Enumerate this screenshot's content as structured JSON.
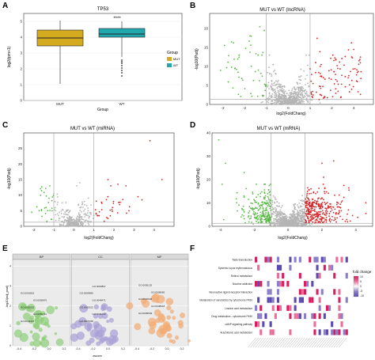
{
  "chart_data": [
    {
      "panel": "A",
      "type": "box",
      "title": "TP53",
      "xlabel": "Group",
      "ylabel": "log2(tpm+1)",
      "categories": [
        "MUT",
        "WT"
      ],
      "ylim": [
        0,
        5.5
      ],
      "ytick_labels": [
        "0",
        "1",
        "2",
        "3",
        "4",
        "5"
      ],
      "annotation": "****",
      "boxes": [
        {
          "name": "MUT",
          "color": "#d4ab1f",
          "whisker_low": 1.05,
          "q1": 3.45,
          "median": 3.95,
          "q3": 4.45,
          "whisker_high": 5.05,
          "outliers": []
        },
        {
          "name": "WT",
          "color": "#20a8ad",
          "whisker_low": 2.75,
          "q1": 4.0,
          "median": 4.2,
          "q3": 4.55,
          "whisker_high": 5.0,
          "outliers": [
            2.55,
            2.45,
            2.35,
            2.2,
            2.05,
            1.9,
            1.75,
            1.55
          ]
        }
      ],
      "legend": {
        "title": "Group",
        "entries": [
          "MUT",
          "WT"
        ],
        "position": "right"
      }
    },
    {
      "panel": "B",
      "type": "scatter",
      "title": "MUT vs WT (lncRNA)",
      "xlabel": "log2(FoldChang)",
      "ylabel": "-log10(Padj)",
      "xlim": [
        -3.6,
        3.9
      ],
      "ylim": [
        0,
        24
      ],
      "xticks": [
        -3,
        -2,
        -1,
        0,
        1,
        2,
        3
      ],
      "yticks": [
        0,
        5,
        10,
        15,
        20
      ],
      "vlines": [
        -1,
        1
      ],
      "hline": 1.3,
      "groups": {
        "down": "#59b845",
        "ns": "#b5b5b5",
        "up": "#d62728"
      }
    },
    {
      "panel": "C",
      "type": "scatter",
      "title": "MUT vs WT (miRNA)",
      "xlabel": "log2(FoldChang)",
      "ylabel": "-log10(Padj)",
      "xlim": [
        -2.5,
        5.0
      ],
      "ylim": [
        0,
        30
      ],
      "xticks": [
        -2,
        -1,
        0,
        1,
        2,
        3,
        4
      ],
      "yticks": [
        0,
        5,
        10,
        15,
        20,
        25
      ],
      "vlines": [
        -1,
        1
      ],
      "hline": 1.3,
      "groups": {
        "down": "#59b845",
        "ns": "#b5b5b5",
        "up": "#d62728"
      }
    },
    {
      "panel": "D",
      "type": "scatter",
      "title": "MUT vs WT (mRNA)",
      "xlabel": "log2(FoldChang)",
      "ylabel": "-log10(Padj)",
      "xlim": [
        -4.5,
        5.0
      ],
      "ylim": [
        0,
        40
      ],
      "xticks": [
        -4,
        -2,
        0,
        2,
        4
      ],
      "yticks": [
        0,
        10,
        20,
        30,
        40
      ],
      "vlines": [
        -1,
        1
      ],
      "hline": 1.3,
      "groups": {
        "down": "#59b845",
        "ns": "#b5b5b5",
        "up": "#d62728"
      }
    },
    {
      "panel": "E",
      "type": "bubble",
      "ylabel": "-log10(adj_pval)",
      "xlabel": "zscore",
      "facets": [
        "BP",
        "CC",
        "MF"
      ],
      "facet_colors": [
        "#8fcf7a",
        "#a9a0d6",
        "#f2ab72"
      ],
      "xticks": [
        "-0.4",
        "-0.2",
        "0.0",
        "0.2"
      ],
      "yticks": [
        "0",
        "1",
        "2",
        "3",
        "4"
      ],
      "point_labels": [
        "GO:0043367",
        "GO:0050711",
        "GO:0010332",
        "GO:0050870",
        "GO:0001819",
        "GO:0005788",
        "GO:0031012",
        "GO:0062023",
        "GO:0048471",
        "GO:0009986",
        "GO:0009897",
        "GO:0005539",
        "GO:0048018",
        "GO:0030546",
        "GO:0008083",
        "GO:0005125"
      ]
    },
    {
      "panel": "F",
      "type": "heatmap",
      "legend_title": "fold change",
      "legend_ticks": [
        "10",
        "5",
        "0",
        "-5",
        "-10"
      ],
      "colorscale": [
        "#d61f5e",
        "#e86f9a",
        "#ffffff",
        "#8c7fc9",
        "#5b4bb0"
      ],
      "rows": [
        "Taste transduction",
        "Systemic lupus erythematosus",
        "Retinol metabolism",
        "Nicotine addiction",
        "Neuroactive ligand-receptor interaction",
        "Metabolism of xenobiotics by cytochrome P450",
        "Linoleic acid metabolism",
        "Drug metabolism - cytochrome P450",
        "cAMP signaling pathway",
        "Arachidonic acid metabolism"
      ]
    }
  ],
  "panels": {
    "A": {
      "label": "A"
    },
    "B": {
      "label": "B"
    },
    "C": {
      "label": "C"
    },
    "D": {
      "label": "D"
    },
    "E": {
      "label": "E"
    },
    "F": {
      "label": "F"
    }
  }
}
